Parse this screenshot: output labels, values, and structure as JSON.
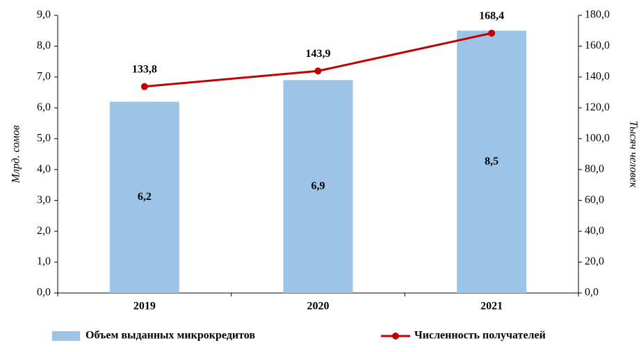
{
  "chart_data": {
    "type": "bar",
    "y_label": "Млрд. сомов",
    "y2_label": "Тысяч человек",
    "categories": [
      "2019",
      "2020",
      "2021"
    ],
    "series": [
      {
        "name": "Объем выданных микрокредитов",
        "type": "bar",
        "color": "#9dc3e6",
        "values": [
          6.2,
          6.9,
          8.5
        ],
        "value_labels": [
          "6,2",
          "6,9",
          "8,5"
        ]
      },
      {
        "name": "Численность получателей",
        "type": "line",
        "axis": "y2",
        "color": "#c00000",
        "values": [
          133.8,
          143.9,
          168.4
        ],
        "value_labels": [
          "133,8",
          "143,9",
          "168,4"
        ]
      }
    ],
    "ylim": [
      0,
      9
    ],
    "yticks": [
      {
        "value": 0,
        "label": "0,0"
      },
      {
        "value": 1,
        "label": "1,0"
      },
      {
        "value": 2,
        "label": "2,0"
      },
      {
        "value": 3,
        "label": "3,0"
      },
      {
        "value": 4,
        "label": "4,0"
      },
      {
        "value": 5,
        "label": "5,0"
      },
      {
        "value": 6,
        "label": "6,0"
      },
      {
        "value": 7,
        "label": "7,0"
      },
      {
        "value": 8,
        "label": "8,0"
      },
      {
        "value": 9,
        "label": "9,0"
      }
    ],
    "y2lim": [
      0,
      180
    ],
    "y2ticks": [
      {
        "value": 0,
        "label": "0,0"
      },
      {
        "value": 20,
        "label": "20,0"
      },
      {
        "value": 40,
        "label": "40,0"
      },
      {
        "value": 60,
        "label": "60,0"
      },
      {
        "value": 80,
        "label": "80,0"
      },
      {
        "value": 100,
        "label": "100,0"
      },
      {
        "value": 120,
        "label": "120,0"
      },
      {
        "value": 140,
        "label": "140,0"
      },
      {
        "value": 160,
        "label": "160,0"
      },
      {
        "value": 180,
        "label": "180,0"
      }
    ],
    "legend": "bottom"
  }
}
